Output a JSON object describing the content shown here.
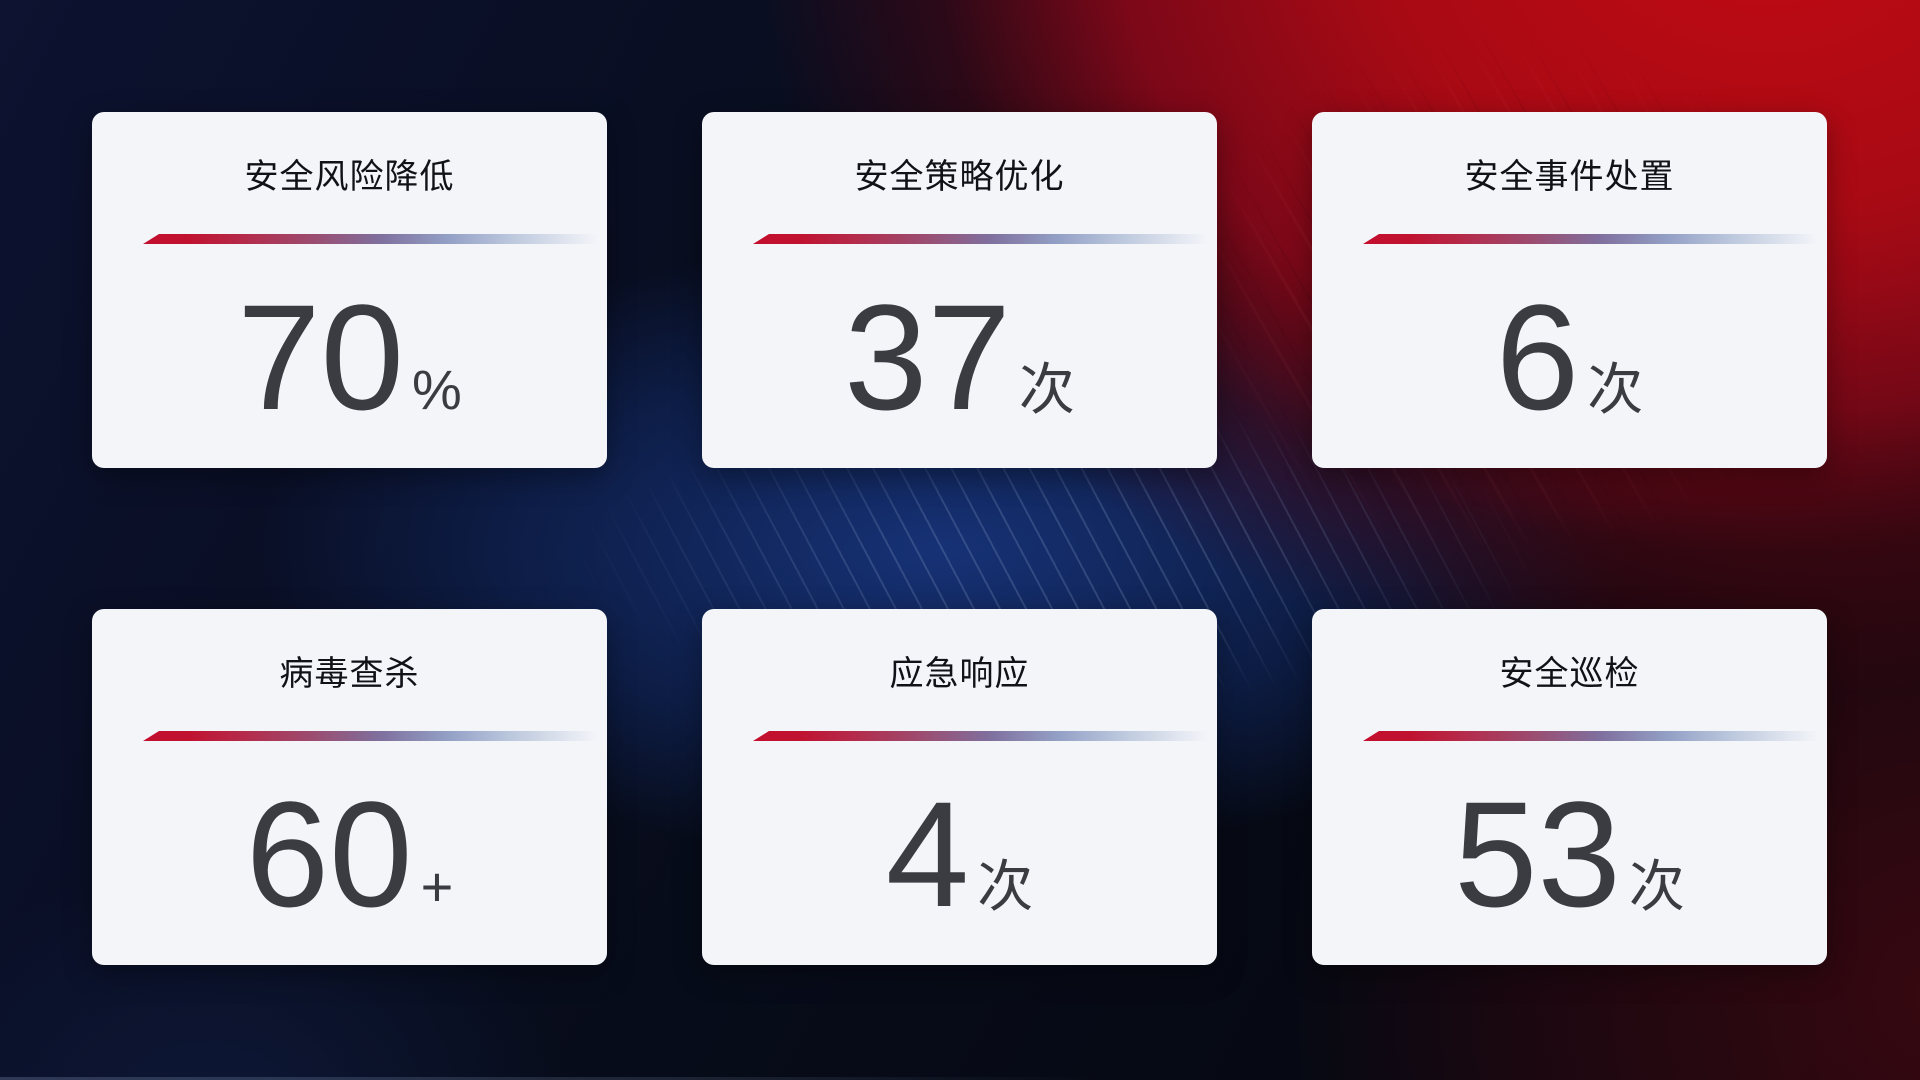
{
  "cards": [
    {
      "title": "安全风险降低",
      "value": "70",
      "unit": "%"
    },
    {
      "title": "安全策略优化",
      "value": "37",
      "unit": "次"
    },
    {
      "title": "安全事件处置",
      "value": "6",
      "unit": "次"
    },
    {
      "title": "病毒查杀",
      "value": "60",
      "unit": "+"
    },
    {
      "title": "应急响应",
      "value": "4",
      "unit": "次"
    },
    {
      "title": "安全巡检",
      "value": "53",
      "unit": "次"
    }
  ],
  "colors": {
    "background_navy": "#0a0f22",
    "background_blue_glow": "#16347d",
    "background_red": "#b00b14",
    "card_background": "#f4f5f9",
    "title_text": "#111118",
    "value_text": "#3b3b42",
    "divider_gradient_start": "#c40e2e",
    "divider_gradient_end": "#c9d3e4"
  }
}
